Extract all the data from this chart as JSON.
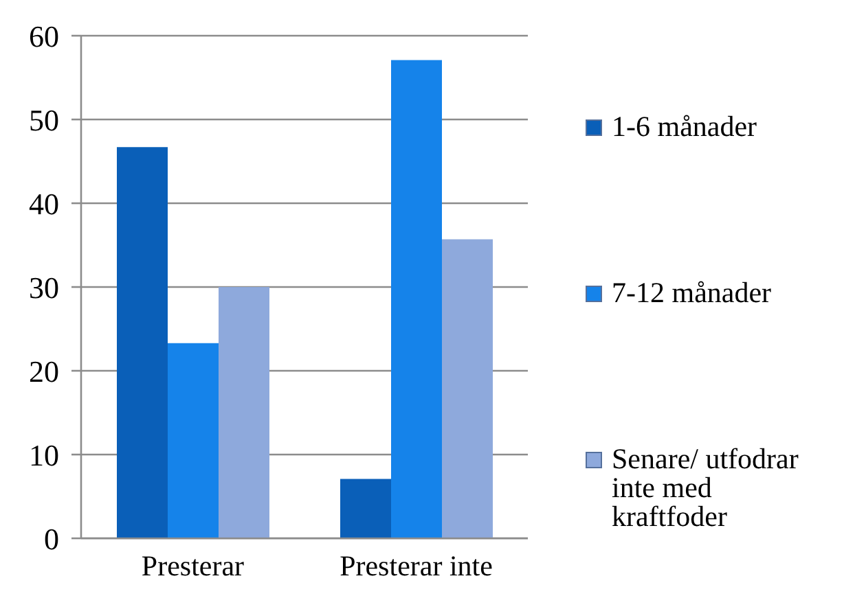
{
  "chart_data": {
    "type": "bar",
    "categories": [
      "Presterar",
      "Presterar inte"
    ],
    "series": [
      {
        "name": "1-6 månader",
        "color": "#0a5fb8",
        "values": [
          46.7,
          7.1
        ]
      },
      {
        "name": "7-12 månader",
        "color": "#1583ea",
        "values": [
          23.3,
          57.1
        ]
      },
      {
        "name": "Senare/ utfodrar inte med kraftfoder",
        "color": "#8ea9dc",
        "values": [
          30,
          35.7
        ]
      }
    ],
    "ylim": [
      0,
      60
    ],
    "yticks": [
      0,
      10,
      20,
      30,
      40,
      50,
      60
    ],
    "grid": "y",
    "legend": "right"
  }
}
